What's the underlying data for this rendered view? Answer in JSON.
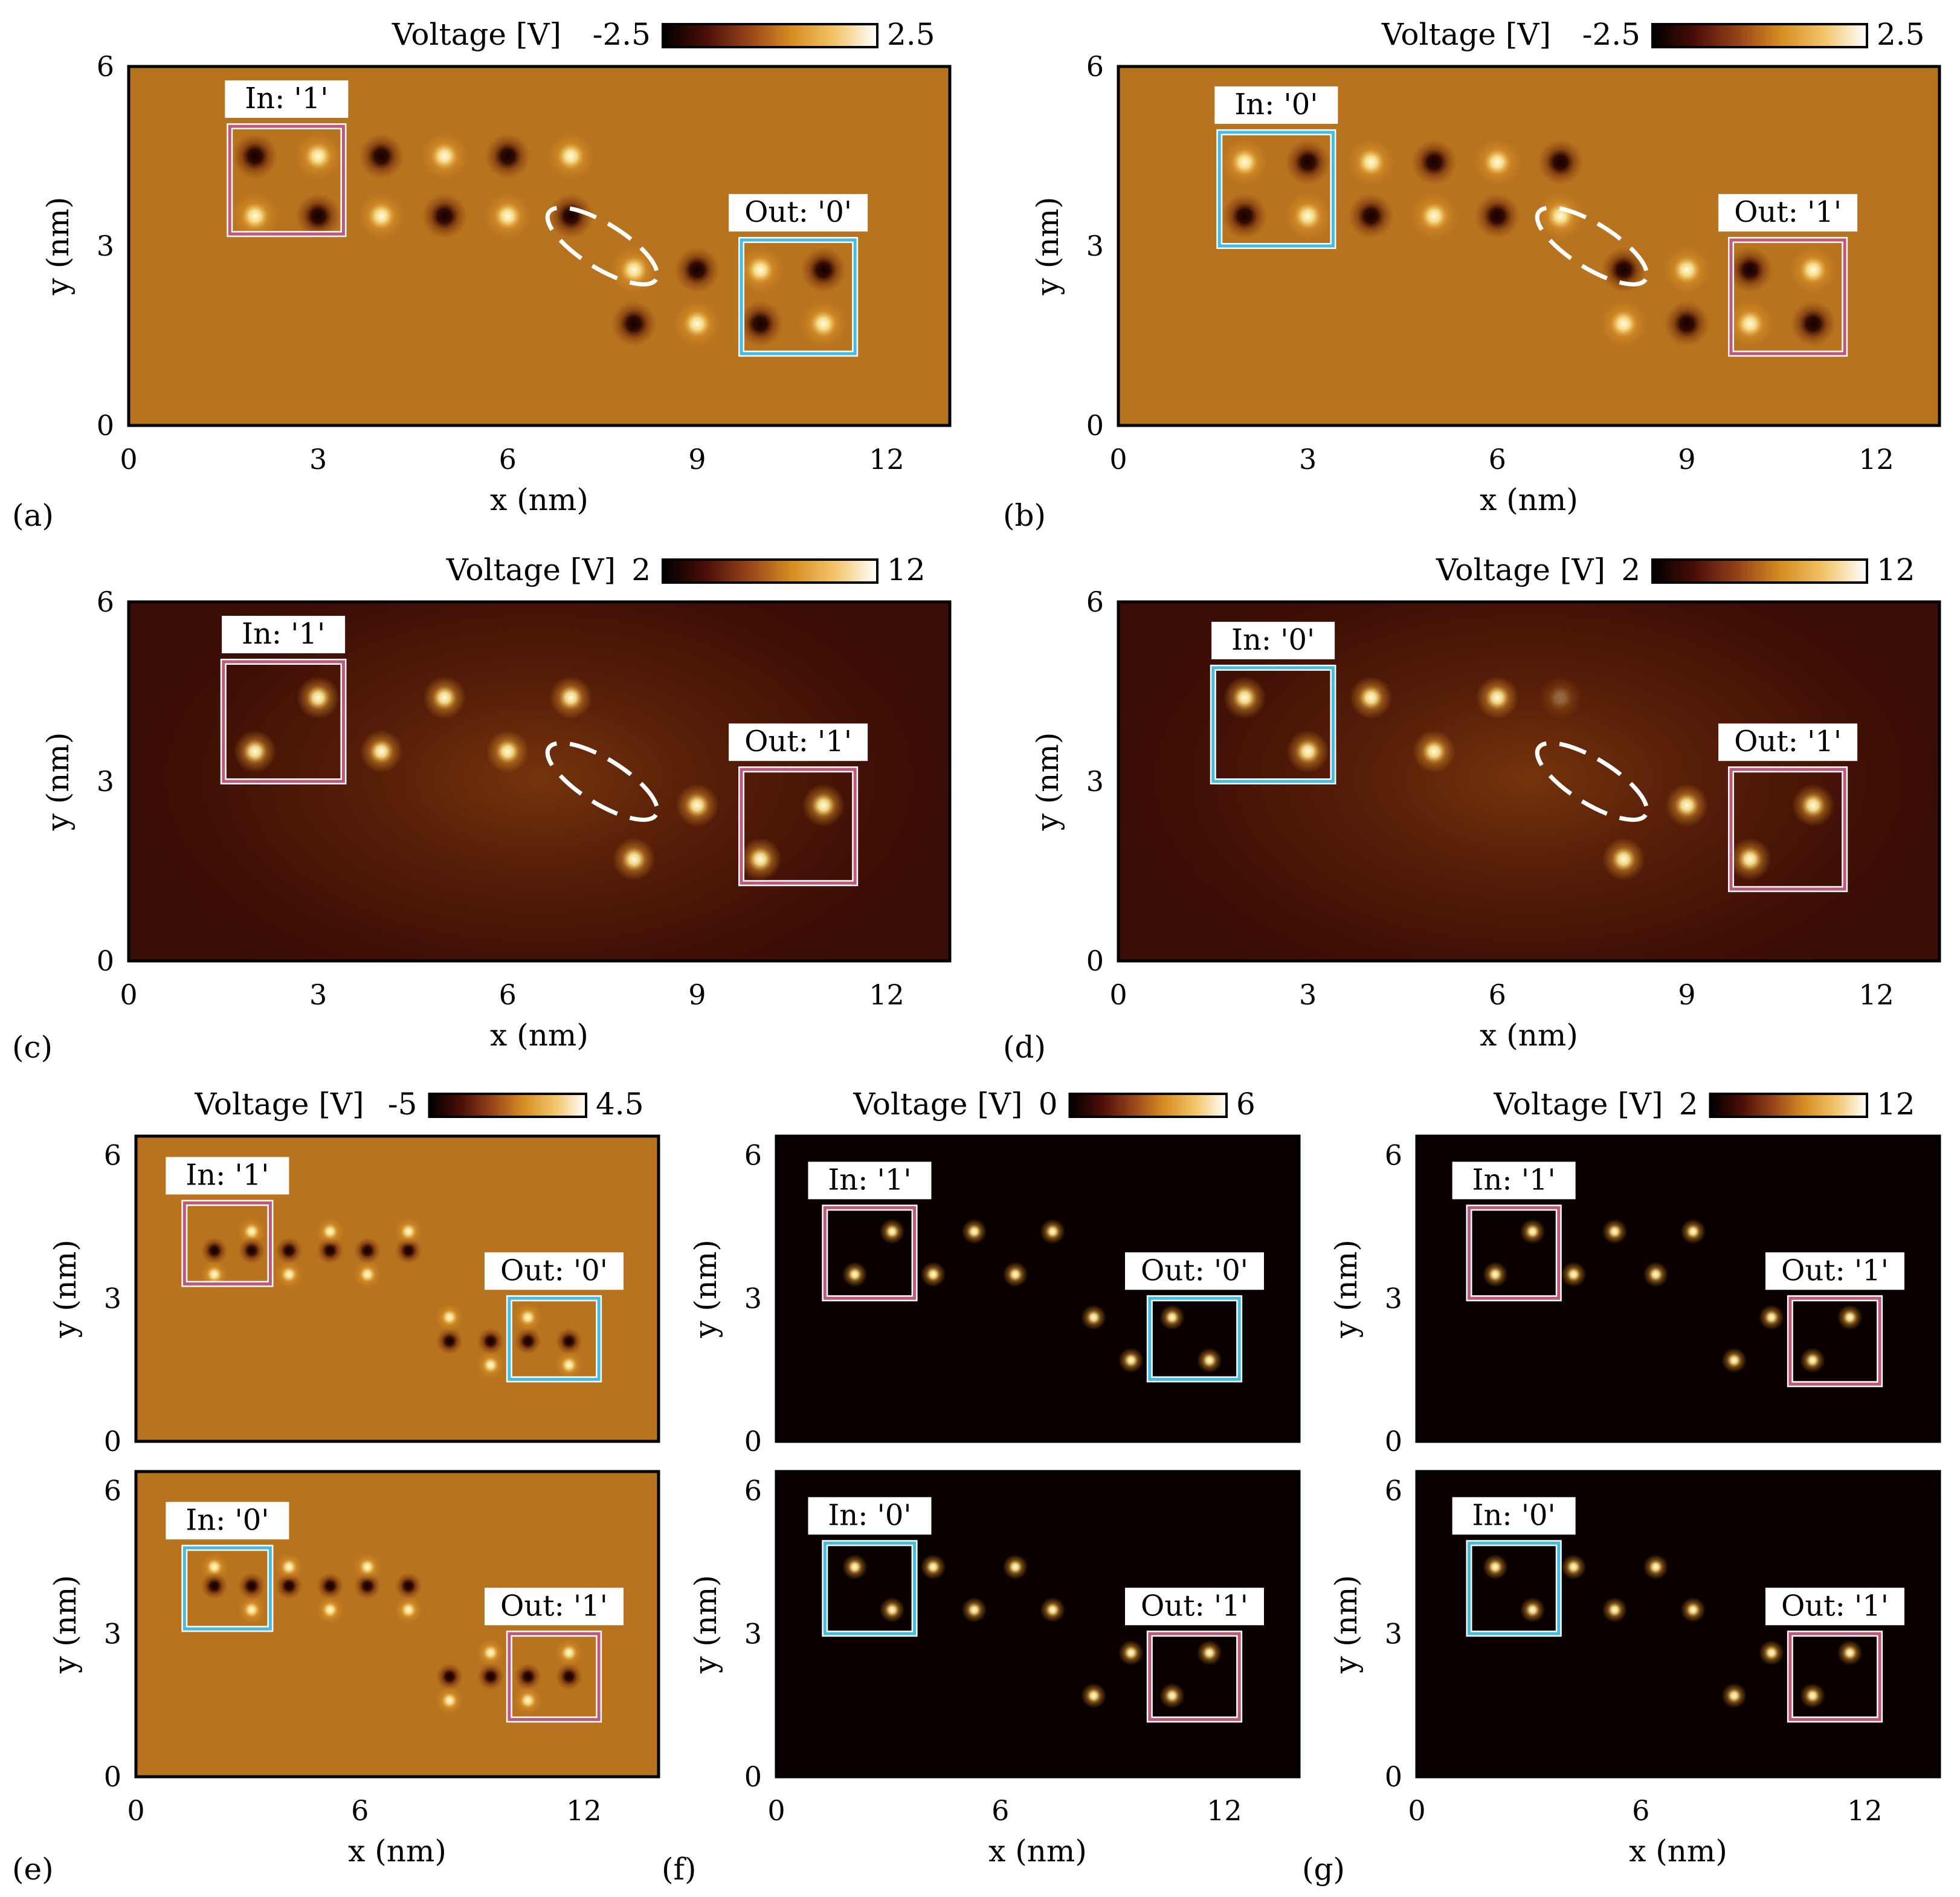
{
  "chart_data": [
    {
      "panel": "(a)",
      "type": "heatmap",
      "colorbar": {
        "label": "Voltage [V]",
        "min": -2.5,
        "max": 2.5,
        "min_label": "-2.5",
        "max_label": "2.5"
      },
      "background": "mid",
      "xlabel": "x (nm)",
      "ylabel": "y (nm)",
      "xlim": [
        0,
        13
      ],
      "ylim": [
        0,
        6
      ],
      "xticks": [
        "0",
        "3",
        "6",
        "9",
        "12"
      ],
      "yticks": [
        "0",
        "3",
        "6"
      ],
      "in_label": "In: '1'",
      "out_label": "Out: '0'",
      "in_state": "1",
      "out_state": "0",
      "in_box": [
        1.6,
        3.2,
        3.4,
        5.0
      ],
      "out_box": [
        9.7,
        1.2,
        11.5,
        3.1
      ],
      "ellipse": {
        "cx": 7.5,
        "cy": 3.0,
        "rx": 1.0,
        "ry": 0.35,
        "angle": -32
      },
      "dots": [
        {
          "x": 2,
          "y": 4.5,
          "s": -1
        },
        {
          "x": 3,
          "y": 4.5,
          "s": 1
        },
        {
          "x": 2,
          "y": 3.5,
          "s": 1
        },
        {
          "x": 3,
          "y": 3.5,
          "s": -1
        },
        {
          "x": 4,
          "y": 4.5,
          "s": -1
        },
        {
          "x": 5,
          "y": 4.5,
          "s": 1
        },
        {
          "x": 6,
          "y": 4.5,
          "s": -1
        },
        {
          "x": 7,
          "y": 4.5,
          "s": 1
        },
        {
          "x": 4,
          "y": 3.5,
          "s": 1
        },
        {
          "x": 5,
          "y": 3.5,
          "s": -1
        },
        {
          "x": 6,
          "y": 3.5,
          "s": 1
        },
        {
          "x": 7,
          "y": 3.5,
          "s": -1
        },
        {
          "x": 8,
          "y": 2.6,
          "s": 1
        },
        {
          "x": 8,
          "y": 1.7,
          "s": -1
        },
        {
          "x": 9,
          "y": 2.6,
          "s": -1
        },
        {
          "x": 9,
          "y": 1.7,
          "s": 1
        },
        {
          "x": 10,
          "y": 2.6,
          "s": 1
        },
        {
          "x": 11,
          "y": 2.6,
          "s": -1
        },
        {
          "x": 10,
          "y": 1.7,
          "s": -1
        },
        {
          "x": 11,
          "y": 1.7,
          "s": 1
        }
      ]
    },
    {
      "panel": "(b)",
      "type": "heatmap",
      "colorbar": {
        "label": "Voltage [V]",
        "min": -2.5,
        "max": 2.5,
        "min_label": "-2.5",
        "max_label": "2.5"
      },
      "background": "mid",
      "xlabel": "x (nm)",
      "ylabel": "y (nm)",
      "xlim": [
        0,
        13
      ],
      "ylim": [
        0,
        6
      ],
      "xticks": [
        "0",
        "3",
        "6",
        "9",
        "12"
      ],
      "yticks": [
        "0",
        "3",
        "6"
      ],
      "in_label": "In: '0'",
      "out_label": "Out: '1'",
      "in_state": "0",
      "out_state": "1",
      "in_box": [
        1.6,
        3.0,
        3.4,
        4.9
      ],
      "out_box": [
        9.7,
        1.2,
        11.5,
        3.1
      ],
      "ellipse": {
        "cx": 7.5,
        "cy": 3.0,
        "rx": 1.0,
        "ry": 0.35,
        "angle": -32
      },
      "dots": [
        {
          "x": 2,
          "y": 4.4,
          "s": 1
        },
        {
          "x": 3,
          "y": 4.4,
          "s": -1
        },
        {
          "x": 2,
          "y": 3.5,
          "s": -1
        },
        {
          "x": 3,
          "y": 3.5,
          "s": 1
        },
        {
          "x": 4,
          "y": 4.4,
          "s": 1
        },
        {
          "x": 5,
          "y": 4.4,
          "s": -1
        },
        {
          "x": 6,
          "y": 4.4,
          "s": 1
        },
        {
          "x": 7,
          "y": 4.4,
          "s": -1
        },
        {
          "x": 4,
          "y": 3.5,
          "s": -1
        },
        {
          "x": 5,
          "y": 3.5,
          "s": 1
        },
        {
          "x": 6,
          "y": 3.5,
          "s": -1
        },
        {
          "x": 7,
          "y": 3.5,
          "s": 1
        },
        {
          "x": 8,
          "y": 2.6,
          "s": -1
        },
        {
          "x": 8,
          "y": 1.7,
          "s": 1
        },
        {
          "x": 9,
          "y": 2.6,
          "s": 1
        },
        {
          "x": 9,
          "y": 1.7,
          "s": -1
        },
        {
          "x": 10,
          "y": 2.6,
          "s": -1
        },
        {
          "x": 11,
          "y": 2.6,
          "s": 1
        },
        {
          "x": 10,
          "y": 1.7,
          "s": 1
        },
        {
          "x": 11,
          "y": 1.7,
          "s": -1
        }
      ]
    },
    {
      "panel": "(c)",
      "type": "heatmap",
      "colorbar": {
        "label": "Voltage [V]",
        "min": 2,
        "max": 12,
        "min_label": "2",
        "max_label": "12"
      },
      "background": "dark",
      "xlabel": "x (nm)",
      "ylabel": "y (nm)",
      "xlim": [
        0,
        13
      ],
      "ylim": [
        0,
        6
      ],
      "xticks": [
        "0",
        "3",
        "6",
        "9",
        "12"
      ],
      "yticks": [
        "0",
        "3",
        "6"
      ],
      "in_label": "In: '1'",
      "out_label": "Out: '1'",
      "in_state": "1",
      "out_state": "1",
      "in_box": [
        1.5,
        3.0,
        3.4,
        5.0
      ],
      "out_box": [
        9.7,
        1.3,
        11.5,
        3.2
      ],
      "ellipse": {
        "cx": 7.5,
        "cy": 3.0,
        "rx": 1.0,
        "ry": 0.35,
        "angle": -32
      },
      "dots": [
        {
          "x": 3,
          "y": 4.4,
          "s": 1
        },
        {
          "x": 2,
          "y": 3.5,
          "s": 1
        },
        {
          "x": 4,
          "y": 3.5,
          "s": 1
        },
        {
          "x": 5,
          "y": 4.4,
          "s": 1
        },
        {
          "x": 6,
          "y": 3.5,
          "s": 1
        },
        {
          "x": 7,
          "y": 4.4,
          "s": 1
        },
        {
          "x": 9,
          "y": 2.6,
          "s": 1
        },
        {
          "x": 8,
          "y": 1.7,
          "s": 1
        },
        {
          "x": 11,
          "y": 2.6,
          "s": 1
        },
        {
          "x": 10,
          "y": 1.7,
          "s": 1
        }
      ]
    },
    {
      "panel": "(d)",
      "type": "heatmap",
      "colorbar": {
        "label": "Voltage [V]",
        "min": 2,
        "max": 12,
        "min_label": "2",
        "max_label": "12"
      },
      "background": "dark",
      "xlabel": "x (nm)",
      "ylabel": "y (nm)",
      "xlim": [
        0,
        13
      ],
      "ylim": [
        0,
        6
      ],
      "xticks": [
        "0",
        "3",
        "6",
        "9",
        "12"
      ],
      "yticks": [
        "0",
        "3",
        "6"
      ],
      "in_label": "In: '0'",
      "out_label": "Out: '1'",
      "in_state": "0",
      "out_state": "1",
      "in_box": [
        1.5,
        3.0,
        3.4,
        4.9
      ],
      "out_box": [
        9.7,
        1.2,
        11.5,
        3.2
      ],
      "ellipse": {
        "cx": 7.5,
        "cy": 3.0,
        "rx": 1.0,
        "ry": 0.35,
        "angle": -32
      },
      "dots": [
        {
          "x": 2,
          "y": 4.4,
          "s": 1
        },
        {
          "x": 3,
          "y": 3.5,
          "s": 1
        },
        {
          "x": 4,
          "y": 4.4,
          "s": 1
        },
        {
          "x": 5,
          "y": 3.5,
          "s": 1
        },
        {
          "x": 6,
          "y": 4.4,
          "s": 1
        },
        {
          "x": 7,
          "y": 4.4,
          "s": 0.35
        },
        {
          "x": 9,
          "y": 2.6,
          "s": 1
        },
        {
          "x": 8,
          "y": 1.7,
          "s": 1
        },
        {
          "x": 11,
          "y": 2.6,
          "s": 1
        },
        {
          "x": 10,
          "y": 1.7,
          "s": 1
        }
      ]
    },
    {
      "panel": "(e)",
      "type": "heatmap",
      "colorbar": {
        "label": "Voltage [V]",
        "min": -5,
        "max": 4.5,
        "min_label": "-5",
        "max_label": "4.5"
      },
      "background": "mid",
      "xlabel": "",
      "ylabel": "y (nm)",
      "xlim": [
        0,
        14
      ],
      "ylim": [
        0,
        6.4
      ],
      "xticks": [],
      "yticks": [
        "0",
        "3",
        "6"
      ],
      "in_label": "In: '1'",
      "out_label": "Out: '0'",
      "in_state": "1",
      "out_state": "0",
      "in_box": [
        1.3,
        3.3,
        3.6,
        5.0
      ],
      "out_box": [
        10.0,
        1.3,
        12.4,
        3.0
      ],
      "ellipse": null,
      "dots": [
        {
          "x": 3.1,
          "y": 4.4,
          "s": 1
        },
        {
          "x": 2.1,
          "y": 3.5,
          "s": 1
        },
        {
          "x": 2.1,
          "y": 4.0,
          "s": -1
        },
        {
          "x": 3.1,
          "y": 4.0,
          "s": -1
        },
        {
          "x": 4.1,
          "y": 4.0,
          "s": -1
        },
        {
          "x": 5.2,
          "y": 4.0,
          "s": -1
        },
        {
          "x": 6.2,
          "y": 4.0,
          "s": -1
        },
        {
          "x": 7.3,
          "y": 4.0,
          "s": -1
        },
        {
          "x": 4.1,
          "y": 3.5,
          "s": 1
        },
        {
          "x": 5.2,
          "y": 4.4,
          "s": 1
        },
        {
          "x": 6.2,
          "y": 3.5,
          "s": 1
        },
        {
          "x": 7.3,
          "y": 4.4,
          "s": 1
        },
        {
          "x": 8.4,
          "y": 2.1,
          "s": -1
        },
        {
          "x": 9.5,
          "y": 2.1,
          "s": -1
        },
        {
          "x": 10.5,
          "y": 2.1,
          "s": -1
        },
        {
          "x": 11.6,
          "y": 2.1,
          "s": -1
        },
        {
          "x": 8.4,
          "y": 2.6,
          "s": 1
        },
        {
          "x": 9.5,
          "y": 1.6,
          "s": 1
        },
        {
          "x": 10.5,
          "y": 2.6,
          "s": 1
        },
        {
          "x": 11.6,
          "y": 1.6,
          "s": 1
        }
      ]
    },
    {
      "panel": "(e)",
      "type": "heatmap",
      "colorbar": null,
      "background": "mid",
      "xlabel": "x (nm)",
      "ylabel": "y (nm)",
      "xlim": [
        0,
        14
      ],
      "ylim": [
        0,
        6.4
      ],
      "xticks": [
        "0",
        "6",
        "12"
      ],
      "yticks": [
        "0",
        "3",
        "6"
      ],
      "in_label": "In: '0'",
      "out_label": "Out: '1'",
      "in_state": "0",
      "out_state": "1",
      "in_box": [
        1.3,
        3.1,
        3.6,
        4.8
      ],
      "out_box": [
        10.0,
        1.2,
        12.4,
        3.0
      ],
      "ellipse": null,
      "dots": [
        {
          "x": 2.1,
          "y": 4.4,
          "s": 1
        },
        {
          "x": 3.1,
          "y": 3.5,
          "s": 1
        },
        {
          "x": 2.1,
          "y": 4.0,
          "s": -1
        },
        {
          "x": 3.1,
          "y": 4.0,
          "s": -1
        },
        {
          "x": 4.1,
          "y": 4.0,
          "s": -1
        },
        {
          "x": 5.2,
          "y": 4.0,
          "s": -1
        },
        {
          "x": 6.2,
          "y": 4.0,
          "s": -1
        },
        {
          "x": 7.3,
          "y": 4.0,
          "s": -1
        },
        {
          "x": 4.1,
          "y": 4.4,
          "s": 1
        },
        {
          "x": 5.2,
          "y": 3.5,
          "s": 1
        },
        {
          "x": 6.2,
          "y": 4.4,
          "s": 1
        },
        {
          "x": 7.3,
          "y": 3.5,
          "s": 1
        },
        {
          "x": 8.4,
          "y": 2.1,
          "s": -1
        },
        {
          "x": 9.5,
          "y": 2.1,
          "s": -1
        },
        {
          "x": 10.5,
          "y": 2.1,
          "s": -1
        },
        {
          "x": 11.6,
          "y": 2.1,
          "s": -1
        },
        {
          "x": 8.4,
          "y": 1.6,
          "s": 1
        },
        {
          "x": 9.5,
          "y": 2.6,
          "s": 1
        },
        {
          "x": 10.5,
          "y": 1.6,
          "s": 1
        },
        {
          "x": 11.6,
          "y": 2.6,
          "s": 1
        }
      ]
    },
    {
      "panel": "(f)",
      "type": "heatmap",
      "colorbar": {
        "label": "Voltage [V]",
        "min": 0,
        "max": 6,
        "min_label": "0",
        "max_label": "6"
      },
      "background": "black",
      "xlabel": "",
      "ylabel": "y (nm)",
      "xlim": [
        0,
        14
      ],
      "ylim": [
        0,
        6.4
      ],
      "xticks": [],
      "yticks": [
        "0",
        "3",
        "6"
      ],
      "in_label": "In: '1'",
      "out_label": "Out: '0'",
      "in_state": "1",
      "out_state": "0",
      "in_box": [
        1.3,
        3.0,
        3.7,
        4.9
      ],
      "out_box": [
        10.0,
        1.3,
        12.4,
        3.0
      ],
      "ellipse": null,
      "dots": [
        {
          "x": 3.1,
          "y": 4.4,
          "s": 1
        },
        {
          "x": 2.1,
          "y": 3.5,
          "s": 1
        },
        {
          "x": 4.2,
          "y": 3.5,
          "s": 1
        },
        {
          "x": 5.3,
          "y": 4.4,
          "s": 1
        },
        {
          "x": 6.4,
          "y": 3.5,
          "s": 1
        },
        {
          "x": 7.4,
          "y": 4.4,
          "s": 1
        },
        {
          "x": 8.5,
          "y": 2.6,
          "s": 1
        },
        {
          "x": 9.5,
          "y": 1.7,
          "s": 1
        },
        {
          "x": 10.6,
          "y": 2.6,
          "s": 1
        },
        {
          "x": 11.6,
          "y": 1.7,
          "s": 1
        }
      ]
    },
    {
      "panel": "(f)",
      "type": "heatmap",
      "colorbar": null,
      "background": "black",
      "xlabel": "x (nm)",
      "ylabel": "y (nm)",
      "xlim": [
        0,
        14
      ],
      "ylim": [
        0,
        6.4
      ],
      "xticks": [
        "0",
        "6",
        "12"
      ],
      "yticks": [
        "0",
        "3",
        "6"
      ],
      "in_label": "In: '0'",
      "out_label": "Out: '1'",
      "in_state": "0",
      "out_state": "1",
      "in_box": [
        1.3,
        3.0,
        3.7,
        4.9
      ],
      "out_box": [
        10.0,
        1.2,
        12.4,
        3.0
      ],
      "ellipse": null,
      "dots": [
        {
          "x": 2.1,
          "y": 4.4,
          "s": 1
        },
        {
          "x": 3.1,
          "y": 3.5,
          "s": 1
        },
        {
          "x": 4.2,
          "y": 4.4,
          "s": 1
        },
        {
          "x": 5.3,
          "y": 3.5,
          "s": 1
        },
        {
          "x": 6.4,
          "y": 4.4,
          "s": 1
        },
        {
          "x": 7.4,
          "y": 3.5,
          "s": 1
        },
        {
          "x": 9.5,
          "y": 2.6,
          "s": 1
        },
        {
          "x": 8.5,
          "y": 1.7,
          "s": 1
        },
        {
          "x": 11.6,
          "y": 2.6,
          "s": 1
        },
        {
          "x": 10.6,
          "y": 1.7,
          "s": 1
        }
      ]
    },
    {
      "panel": "(g)",
      "type": "heatmap",
      "colorbar": {
        "label": "Voltage [V]",
        "min": 2,
        "max": 12,
        "min_label": "2",
        "max_label": "12"
      },
      "background": "black",
      "xlabel": "",
      "ylabel": "y (nm)",
      "xlim": [
        0,
        14
      ],
      "ylim": [
        0,
        6.4
      ],
      "xticks": [],
      "yticks": [
        "0",
        "3",
        "6"
      ],
      "in_label": "In: '1'",
      "out_label": "Out: '1'",
      "in_state": "1",
      "out_state": "1",
      "in_box": [
        1.4,
        3.0,
        3.8,
        4.9
      ],
      "out_box": [
        10.0,
        1.2,
        12.4,
        3.0
      ],
      "ellipse": null,
      "dots": [
        {
          "x": 3.1,
          "y": 4.4,
          "s": 1
        },
        {
          "x": 2.1,
          "y": 3.5,
          "s": 1
        },
        {
          "x": 4.2,
          "y": 3.5,
          "s": 1
        },
        {
          "x": 5.3,
          "y": 4.4,
          "s": 1
        },
        {
          "x": 6.4,
          "y": 3.5,
          "s": 1
        },
        {
          "x": 7.4,
          "y": 4.4,
          "s": 1
        },
        {
          "x": 9.5,
          "y": 2.6,
          "s": 1
        },
        {
          "x": 8.5,
          "y": 1.7,
          "s": 1
        },
        {
          "x": 11.6,
          "y": 2.6,
          "s": 1
        },
        {
          "x": 10.6,
          "y": 1.7,
          "s": 1
        }
      ]
    },
    {
      "panel": "(g)",
      "type": "heatmap",
      "colorbar": null,
      "background": "black",
      "xlabel": "x (nm)",
      "ylabel": "y (nm)",
      "xlim": [
        0,
        14
      ],
      "ylim": [
        0,
        6.4
      ],
      "xticks": [
        "0",
        "6",
        "12"
      ],
      "yticks": [
        "0",
        "3",
        "6"
      ],
      "in_label": "In: '0'",
      "out_label": "Out: '1'",
      "in_state": "0",
      "out_state": "1",
      "in_box": [
        1.4,
        3.0,
        3.8,
        4.9
      ],
      "out_box": [
        10.0,
        1.2,
        12.4,
        3.0
      ],
      "ellipse": null,
      "dots": [
        {
          "x": 2.1,
          "y": 4.4,
          "s": 1
        },
        {
          "x": 3.1,
          "y": 3.5,
          "s": 1
        },
        {
          "x": 4.2,
          "y": 4.4,
          "s": 1
        },
        {
          "x": 5.3,
          "y": 3.5,
          "s": 1
        },
        {
          "x": 6.4,
          "y": 4.4,
          "s": 1
        },
        {
          "x": 7.4,
          "y": 3.5,
          "s": 1
        },
        {
          "x": 9.5,
          "y": 2.6,
          "s": 1
        },
        {
          "x": 8.5,
          "y": 1.7,
          "s": 1
        },
        {
          "x": 11.6,
          "y": 2.6,
          "s": 1
        },
        {
          "x": 10.6,
          "y": 1.7,
          "s": 1
        }
      ]
    }
  ],
  "colors": {
    "state_one_box": "#c0587a",
    "state_zero_box": "#45bde3",
    "mid_background": "#b8731f",
    "dark_background": "#3a0d05",
    "black_background": "#0a0000",
    "bright_dot": "#fffbe6",
    "dark_dot": "#140000",
    "colormap": [
      "#000000",
      "#4a0e08",
      "#96431a",
      "#d68d22",
      "#f2c468",
      "#ffffff"
    ]
  }
}
